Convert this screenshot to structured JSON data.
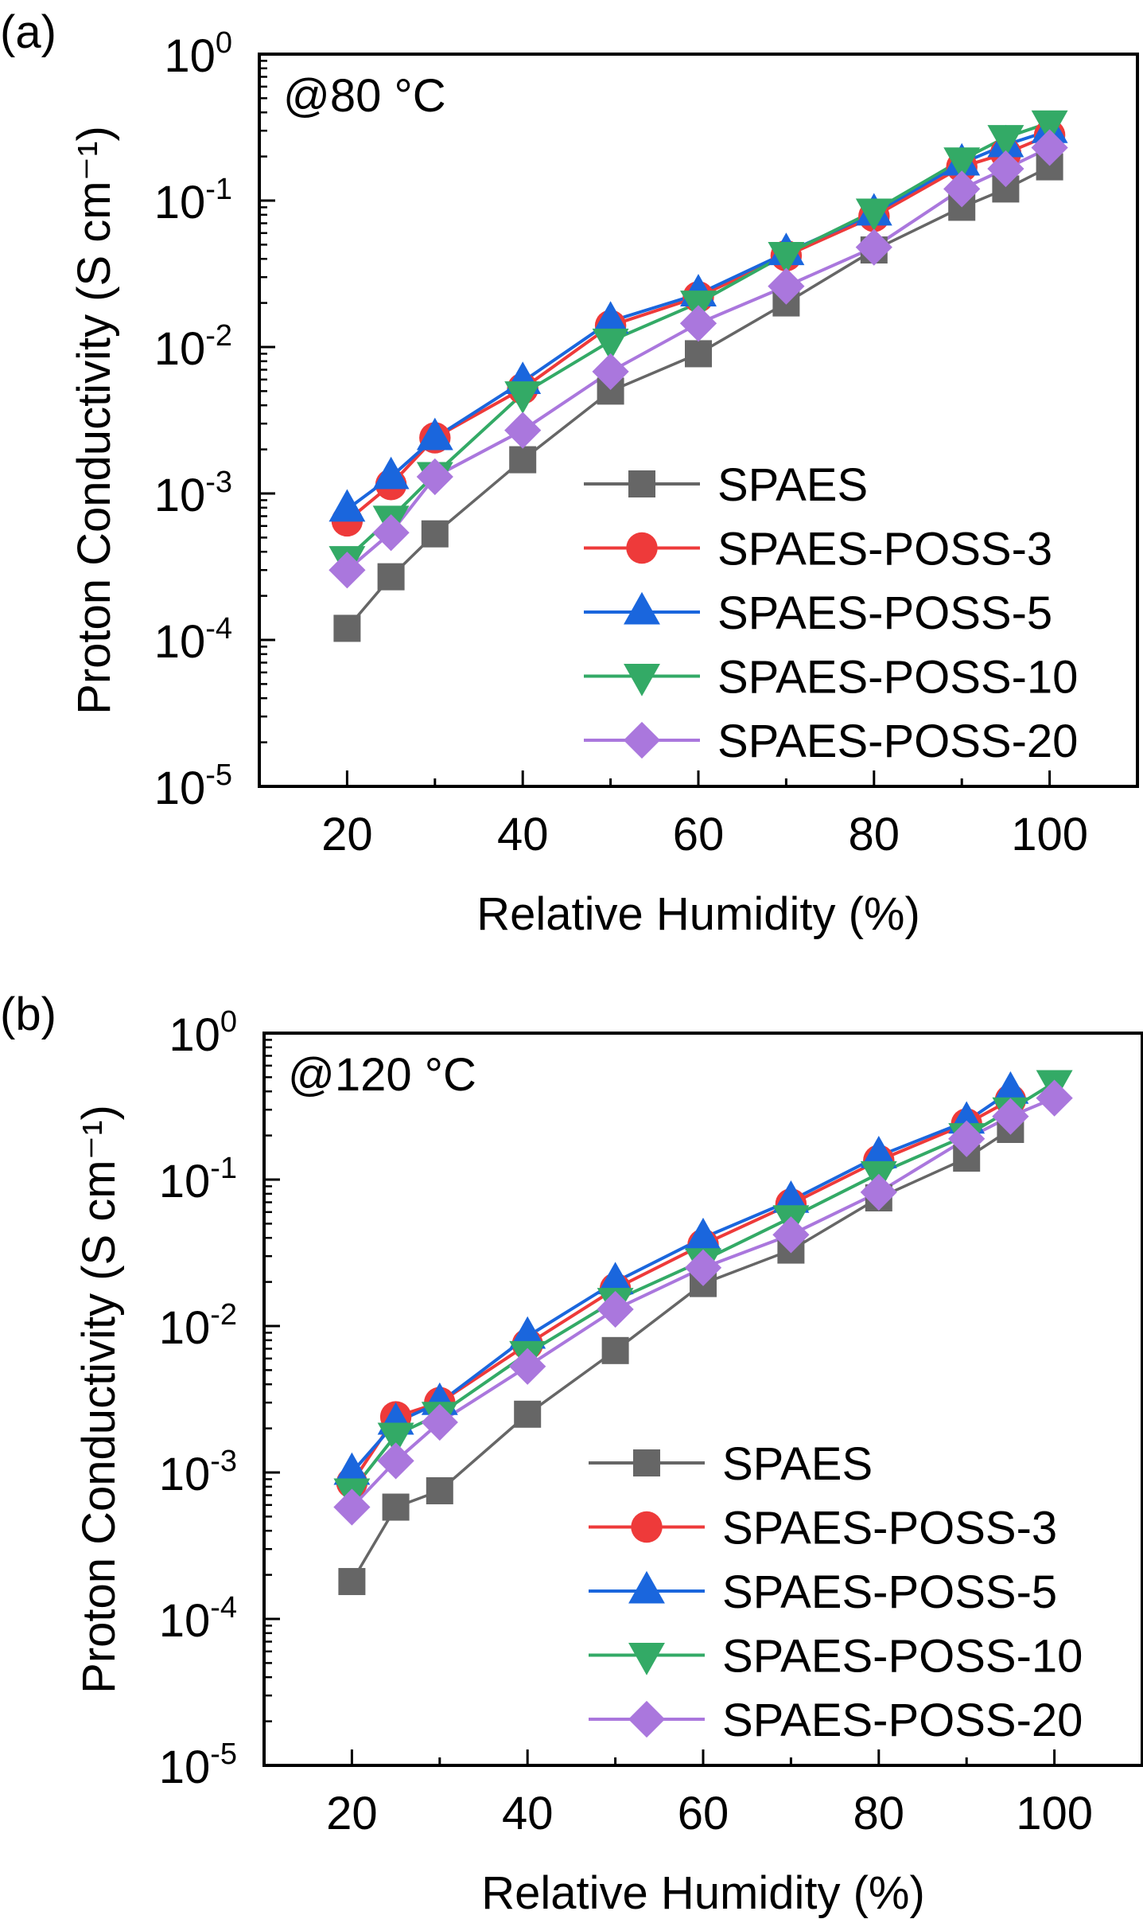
{
  "chart_data": [
    {
      "type": "line",
      "panel_label": "(a)",
      "annotation": "@80 °C",
      "title": "",
      "xlabel": "Relative Humidity (%)",
      "ylabel": "Proton Conductivity (S cm⁻¹)",
      "yscale": "log",
      "xlim": [
        10,
        110
      ],
      "ylim": [
        1e-05,
        1
      ],
      "xticks": [
        20,
        40,
        60,
        80,
        100
      ],
      "xtick_labels": [
        "20",
        "40",
        "60",
        "80",
        "100"
      ],
      "yticks": [
        1e-05,
        0.0001,
        0.001,
        0.01,
        0.1,
        1
      ],
      "ytick_labels": [
        {
          "base": "10",
          "exp": "-5"
        },
        {
          "base": "10",
          "exp": "-4"
        },
        {
          "base": "10",
          "exp": "-3"
        },
        {
          "base": "10",
          "exp": "-2"
        },
        {
          "base": "10",
          "exp": "-1"
        },
        {
          "base": "10",
          "exp": "0"
        }
      ],
      "legend_position": "bottom-right",
      "grid": false,
      "x": [
        20,
        25,
        30,
        40,
        50,
        60,
        70,
        80,
        90,
        95,
        100
      ],
      "series": [
        {
          "name": "SPAES",
          "marker": "square",
          "color": "#666666",
          "values": [
            0.00012,
            0.00027,
            0.00053,
            0.0017,
            0.005,
            0.009,
            0.02,
            0.046,
            0.09,
            0.12,
            0.17
          ]
        },
        {
          "name": "SPAES-POSS-3",
          "marker": "circle",
          "color": "#ee3a3a",
          "values": [
            0.00065,
            0.00115,
            0.0024,
            0.0052,
            0.014,
            0.022,
            0.042,
            0.078,
            0.17,
            0.21,
            0.28
          ]
        },
        {
          "name": "SPAES-POSS-5",
          "marker": "triangle-up",
          "color": "#1a66dd",
          "values": [
            0.00078,
            0.0013,
            0.0024,
            0.0058,
            0.015,
            0.023,
            0.044,
            0.082,
            0.18,
            0.24,
            0.3
          ]
        },
        {
          "name": "SPAES-POSS-10",
          "marker": "triangle-down",
          "color": "#33aa66",
          "values": [
            0.00036,
            0.00068,
            0.00135,
            0.0048,
            0.011,
            0.02,
            0.043,
            0.085,
            0.19,
            0.27,
            0.34
          ]
        },
        {
          "name": "SPAES-POSS-20",
          "marker": "diamond",
          "color": "#aa77dd",
          "values": [
            0.0003,
            0.00054,
            0.0013,
            0.0027,
            0.0068,
            0.0145,
            0.026,
            0.048,
            0.12,
            0.165,
            0.23
          ]
        }
      ]
    },
    {
      "type": "line",
      "panel_label": "(b)",
      "annotation": "@120 °C",
      "title": "",
      "xlabel": "Relative Humidity (%)",
      "ylabel": "Proton Conductivity (S cm⁻¹)",
      "yscale": "log",
      "xlim": [
        10,
        110
      ],
      "ylim": [
        1e-05,
        1
      ],
      "xticks": [
        20,
        40,
        60,
        80,
        100
      ],
      "xtick_labels": [
        "20",
        "40",
        "60",
        "80",
        "100"
      ],
      "yticks": [
        1e-05,
        0.0001,
        0.001,
        0.01,
        0.1,
        1
      ],
      "ytick_labels": [
        {
          "base": "10",
          "exp": "-5"
        },
        {
          "base": "10",
          "exp": "-4"
        },
        {
          "base": "10",
          "exp": "-3"
        },
        {
          "base": "10",
          "exp": "-2"
        },
        {
          "base": "10",
          "exp": "-1"
        },
        {
          "base": "10",
          "exp": "0"
        }
      ],
      "legend_position": "bottom-right",
      "grid": false,
      "x": [
        20,
        25,
        30,
        40,
        50,
        60,
        70,
        80,
        90,
        95,
        100
      ],
      "series": [
        {
          "name": "SPAES",
          "marker": "square",
          "color": "#666666",
          "x": [
            20,
            25,
            30,
            40,
            50,
            60,
            70,
            80,
            90,
            95
          ],
          "values": [
            0.00018,
            0.00058,
            0.00075,
            0.0025,
            0.0068,
            0.0195,
            0.033,
            0.075,
            0.14,
            0.22
          ]
        },
        {
          "name": "SPAES-POSS-3",
          "marker": "circle",
          "color": "#ee3a3a",
          "x": [
            20,
            25,
            30,
            40,
            50,
            60,
            70,
            80,
            90,
            95
          ],
          "values": [
            0.00085,
            0.0024,
            0.003,
            0.0075,
            0.018,
            0.036,
            0.068,
            0.135,
            0.24,
            0.35
          ]
        },
        {
          "name": "SPAES-POSS-5",
          "marker": "triangle-up",
          "color": "#1a66dd",
          "x": [
            20,
            25,
            30,
            40,
            50,
            60,
            70,
            80,
            90,
            95
          ],
          "values": [
            0.001,
            0.0022,
            0.003,
            0.0085,
            0.02,
            0.04,
            0.072,
            0.145,
            0.25,
            0.4
          ]
        },
        {
          "name": "SPAES-POSS-10",
          "marker": "triangle-down",
          "color": "#33aa66",
          "x": [
            20,
            25,
            30,
            40,
            50,
            60,
            70,
            80,
            90,
            95,
            100
          ],
          "values": [
            0.00075,
            0.0018,
            0.0025,
            0.0065,
            0.015,
            0.028,
            0.055,
            0.11,
            0.2,
            0.3,
            0.46
          ]
        },
        {
          "name": "SPAES-POSS-20",
          "marker": "diamond",
          "color": "#aa77dd",
          "x": [
            20,
            25,
            30,
            40,
            50,
            60,
            70,
            80,
            90,
            95,
            100
          ],
          "values": [
            0.00058,
            0.0012,
            0.0022,
            0.0053,
            0.013,
            0.025,
            0.042,
            0.082,
            0.19,
            0.27,
            0.36
          ]
        }
      ]
    }
  ]
}
